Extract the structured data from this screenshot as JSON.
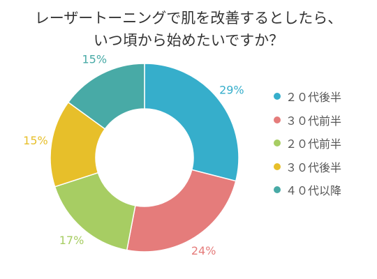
{
  "chart_data": {
    "type": "pie",
    "variant": "donut",
    "title": "レーザートーニングで肌を改善するとしたら、いつ頃から始めたいですか？",
    "title_lines": [
      "レーザートーニングで肌を改善するとしたら、",
      "いつ頃から始めたいですか？"
    ],
    "categories": [
      "２０代後半",
      "３０代前半",
      "２０代前半",
      "３０代後半",
      "４０代以降"
    ],
    "values": [
      29,
      24,
      17,
      15,
      15
    ],
    "value_labels": [
      "29%",
      "24%",
      "17%",
      "15%",
      "15%"
    ],
    "unit": "%",
    "colors": [
      "#36aecb",
      "#e57c7b",
      "#a7cd63",
      "#e7bf2a",
      "#48aaa6"
    ],
    "legend_position": "right",
    "start_angle": "top",
    "direction": "clockwise"
  }
}
